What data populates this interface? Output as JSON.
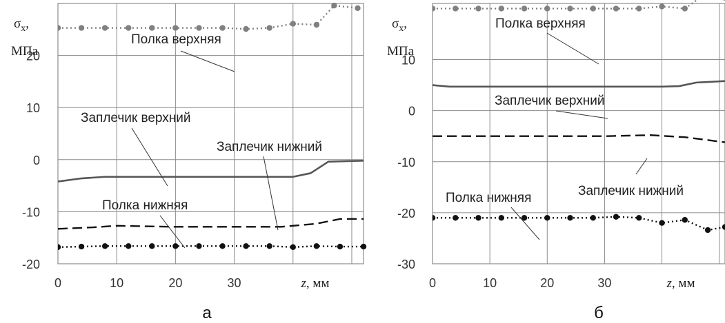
{
  "chart_data": [
    {
      "panel": "а",
      "type": "line",
      "ylabel_symbol": "σ",
      "ylabel_subscript": "x",
      "ylabel_sep": ",",
      "ylabel_unit": "МПа",
      "xlabel_var": "z",
      "xlabel_unit": ", мм",
      "xlim": [
        0,
        52
      ],
      "ylim": [
        -20,
        30
      ],
      "x_ticks": [
        0,
        10,
        20,
        30
      ],
      "y_ticks": [
        20,
        10,
        0,
        -10,
        -20
      ],
      "grid": true,
      "series": [
        {
          "name": "Полка верхняя",
          "style": "dotted-markers",
          "color": "#808080",
          "points": [
            [
              0,
              25.3
            ],
            [
              4,
              25.3
            ],
            [
              8,
              25.3
            ],
            [
              12,
              25.3
            ],
            [
              16,
              25.3
            ],
            [
              20,
              25.3
            ],
            [
              24,
              25.3
            ],
            [
              28,
              25.3
            ],
            [
              32,
              25.1
            ],
            [
              36,
              25.3
            ],
            [
              40,
              26.1
            ],
            [
              44,
              25.9
            ],
            [
              47,
              29.6
            ],
            [
              51,
              29.1
            ]
          ]
        },
        {
          "name": "Заплечик верхний",
          "style": "solid",
          "color": "#555555",
          "points": [
            [
              0,
              -4.2
            ],
            [
              4,
              -3.6
            ],
            [
              8,
              -3.3
            ],
            [
              12,
              -3.3
            ],
            [
              20,
              -3.3
            ],
            [
              30,
              -3.3
            ],
            [
              40,
              -3.3
            ],
            [
              43,
              -2.6
            ],
            [
              46,
              -0.4
            ],
            [
              52,
              -0.2
            ]
          ]
        },
        {
          "name": "Заплечик нижний",
          "style": "dashed",
          "color": "#111111",
          "points": [
            [
              0,
              -13.3
            ],
            [
              6,
              -13.0
            ],
            [
              10,
              -12.7
            ],
            [
              20,
              -12.9
            ],
            [
              30,
              -12.9
            ],
            [
              38,
              -12.9
            ],
            [
              44,
              -12.3
            ],
            [
              48,
              -11.4
            ],
            [
              52,
              -11.4
            ]
          ]
        },
        {
          "name": "Полка нижняя",
          "style": "dotted-markers",
          "color": "#111111",
          "points": [
            [
              0,
              -16.8
            ],
            [
              4,
              -16.7
            ],
            [
              8,
              -16.6
            ],
            [
              12,
              -16.6
            ],
            [
              16,
              -16.6
            ],
            [
              20,
              -16.6
            ],
            [
              24,
              -16.6
            ],
            [
              28,
              -16.6
            ],
            [
              32,
              -16.6
            ],
            [
              36,
              -16.6
            ],
            [
              40,
              -16.8
            ],
            [
              44,
              -16.6
            ],
            [
              48,
              -16.7
            ],
            [
              52,
              -16.7
            ]
          ]
        }
      ]
    },
    {
      "panel": "б",
      "type": "line",
      "ylabel_symbol": "σ",
      "ylabel_subscript": "x",
      "ylabel_sep": ",",
      "ylabel_unit": "МПа",
      "xlabel_var": "z",
      "xlabel_unit": ", мм",
      "xlim": [
        0,
        51
      ],
      "ylim": [
        -30,
        21
      ],
      "x_ticks": [
        0,
        10,
        20,
        30
      ],
      "y_ticks": [
        10,
        0,
        -10,
        -20,
        -30
      ],
      "grid": true,
      "series": [
        {
          "name": "Полка верхняя",
          "style": "dotted-markers",
          "color": "#808080",
          "points": [
            [
              0,
              20.0
            ],
            [
              4,
              20.0
            ],
            [
              8,
              20.0
            ],
            [
              12,
              20.0
            ],
            [
              16,
              20.0
            ],
            [
              20,
              20.0
            ],
            [
              24,
              20.0
            ],
            [
              28,
              20.0
            ],
            [
              32,
              20.0
            ],
            [
              36,
              20.0
            ],
            [
              40,
              20.4
            ],
            [
              44,
              20.0
            ],
            [
              47,
              22.4
            ],
            [
              51,
              22.1
            ]
          ]
        },
        {
          "name": "Заплечик верхний",
          "style": "solid",
          "color": "#555555",
          "points": [
            [
              0,
              5.0
            ],
            [
              3,
              4.7
            ],
            [
              10,
              4.7
            ],
            [
              20,
              4.7
            ],
            [
              30,
              4.7
            ],
            [
              40,
              4.7
            ],
            [
              43,
              4.8
            ],
            [
              46,
              5.5
            ],
            [
              51,
              5.8
            ]
          ]
        },
        {
          "name": "Заплечик нижний",
          "style": "dashed",
          "color": "#111111",
          "points": [
            [
              0,
              -5.0
            ],
            [
              10,
              -5.0
            ],
            [
              20,
              -5.0
            ],
            [
              30,
              -5.0
            ],
            [
              38,
              -4.8
            ],
            [
              44,
              -5.2
            ],
            [
              51,
              -6.2
            ]
          ]
        },
        {
          "name": "Полка нижняя",
          "style": "dotted-markers",
          "color": "#111111",
          "points": [
            [
              0,
              -21.0
            ],
            [
              4,
              -21.0
            ],
            [
              8,
              -21.0
            ],
            [
              12,
              -21.0
            ],
            [
              16,
              -21.0
            ],
            [
              20,
              -21.0
            ],
            [
              24,
              -21.0
            ],
            [
              28,
              -21.0
            ],
            [
              32,
              -20.8
            ],
            [
              36,
              -21.0
            ],
            [
              40,
              -22.0
            ],
            [
              44,
              -21.4
            ],
            [
              48,
              -23.4
            ],
            [
              51,
              -22.8
            ]
          ]
        }
      ]
    }
  ]
}
